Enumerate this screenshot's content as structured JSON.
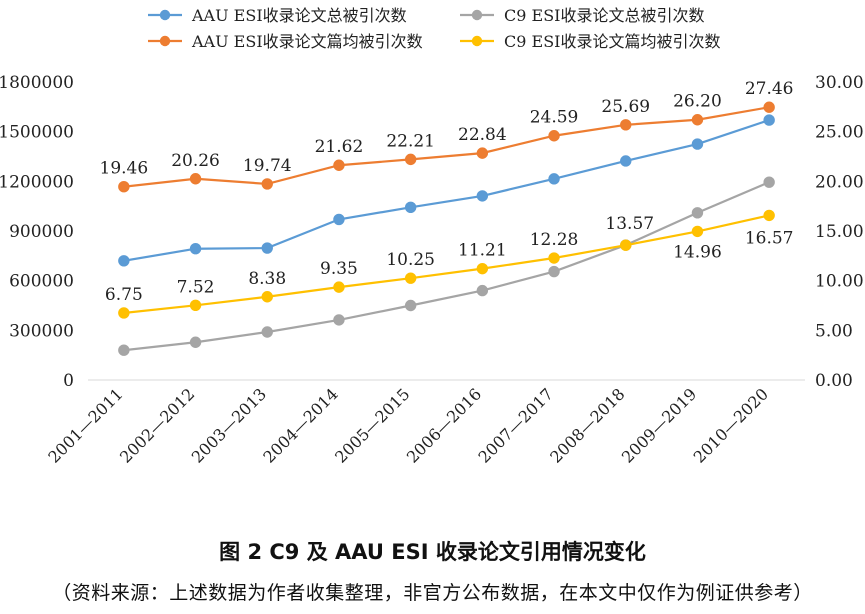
{
  "chart_data": {
    "type": "line",
    "categories": [
      "2001—2011",
      "2002—2012",
      "2003—2013",
      "2004—2014",
      "2005—2015",
      "2006—2016",
      "2007—2017",
      "2008—2018",
      "2009—2019",
      "2010—2020"
    ],
    "series": [
      {
        "name": "AAU ESI收录论文总被引次数",
        "axis": "left",
        "color": "#5b9bd5",
        "values": [
          720000,
          793000,
          797000,
          970000,
          1043000,
          1112000,
          1215000,
          1323000,
          1425000,
          1570000
        ],
        "labels": null
      },
      {
        "name": "C9 ESI收录论文总被引次数",
        "axis": "left",
        "color": "#a5a5a5",
        "values": [
          180000,
          228000,
          290000,
          363000,
          450000,
          540000,
          655000,
          815000,
          1010000,
          1195000
        ],
        "labels": null
      },
      {
        "name": "AAU ESI收录论文篇均被引次数",
        "axis": "right",
        "color": "#ed7d31",
        "values": [
          19.46,
          20.26,
          19.74,
          21.62,
          22.21,
          22.84,
          24.59,
          25.69,
          26.2,
          27.46
        ],
        "labels": [
          "19.46",
          "20.26",
          "19.74",
          "21.62",
          "22.21",
          "22.84",
          "24.59",
          "25.69",
          "26.20",
          "27.46"
        ]
      },
      {
        "name": "C9 ESI收录论文篇均被引次数",
        "axis": "right",
        "color": "#ffc000",
        "values": [
          6.75,
          7.52,
          8.38,
          9.35,
          10.25,
          11.21,
          12.28,
          13.57,
          14.96,
          16.57
        ],
        "labels": [
          "6.75",
          "7.52",
          "8.38",
          "9.35",
          "10.25",
          "11.21",
          "12.28",
          "13.57",
          "14.96",
          "16.57"
        ]
      }
    ],
    "legend_order": [
      0,
      1,
      2,
      3
    ],
    "ylim_left": [
      0,
      1800000
    ],
    "ylim_right": [
      0,
      30
    ],
    "yticks_left": [
      "0",
      "300000",
      "600000",
      "900000",
      "1200000",
      "1500000",
      "1800000"
    ],
    "yticks_right": [
      "0.00",
      "5.00",
      "10.00",
      "15.00",
      "20.00",
      "25.00",
      "30.00"
    ],
    "grid": false,
    "legend_position": "top"
  },
  "figure": {
    "title": "图 2  C9 及 AAU ESI 收录论文引用情况变化",
    "note": "（资料来源：上述数据为作者收集整理，非官方公布数据，在本文中仅作为例证供参考）"
  }
}
